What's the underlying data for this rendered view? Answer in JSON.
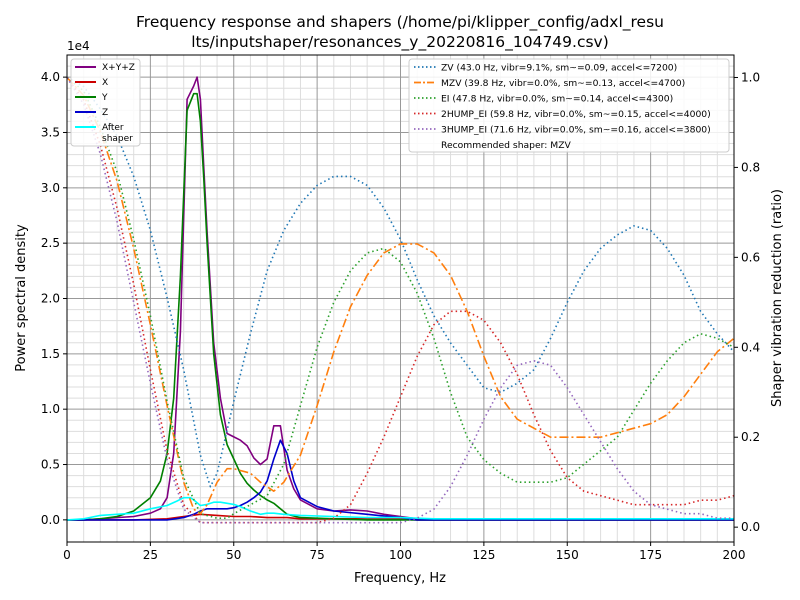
{
  "chart_data": {
    "type": "line",
    "title_lines": [
      "Frequency response and shapers (/home/pi/klipper_config/adxl_resu",
      "lts/inputshaper/resonances_y_20220816_104749.csv)"
    ],
    "xlabel": "Frequency, Hz",
    "ylabel": "Power spectral density",
    "y2label": "Shaper vibration reduction (ratio)",
    "y_multiplier_label": "1e4",
    "xlim": [
      0,
      200
    ],
    "ylim": [
      -0.2,
      4.2
    ],
    "y2lim": [
      -0.033,
      1.05
    ],
    "grid": true,
    "x_ticks": [
      0,
      25,
      50,
      75,
      100,
      125,
      150,
      175,
      200
    ],
    "x_tick_labels": [
      "0",
      "25",
      "50",
      "75",
      "100",
      "125",
      "150",
      "175",
      "200"
    ],
    "y_ticks": [
      0,
      0.5,
      1.0,
      1.5,
      2.0,
      2.5,
      3.0,
      3.5,
      4.0
    ],
    "y_tick_labels": [
      "0.0",
      "0.5",
      "1.0",
      "1.5",
      "2.0",
      "2.5",
      "3.0",
      "3.5",
      "4.0"
    ],
    "y2_ticks": [
      0,
      0.2,
      0.4,
      0.6,
      0.8,
      1.0
    ],
    "y2_tick_labels": [
      "0.0",
      "0.2",
      "0.4",
      "0.6",
      "0.8",
      "1.0"
    ],
    "legend_left": {
      "placement": "top-left",
      "entries": [
        {
          "label": "X+Y+Z",
          "color": "#800080"
        },
        {
          "label": "X",
          "color": "#cc0000"
        },
        {
          "label": "Y",
          "color": "#008000"
        },
        {
          "label": "Z",
          "color": "#0000cc"
        },
        {
          "label": "After\nshaper",
          "color": "#00ffff"
        }
      ]
    },
    "legend_right": {
      "placement": "top-right",
      "entries": [
        {
          "label": "ZV (43.0 Hz, vibr=9.1%, sm~=0.09, accel<=7200)",
          "color": "#1f77b4",
          "style": "dotted"
        },
        {
          "label": "MZV (39.8 Hz, vibr=0.0%, sm~=0.13, accel<=4700)",
          "color": "#ff7f0e",
          "style": "dashdot"
        },
        {
          "label": "EI (47.8 Hz, vibr=0.0%, sm~=0.14, accel<=4300)",
          "color": "#2ca02c",
          "style": "dotted"
        },
        {
          "label": "2HUMP_EI (59.8 Hz, vibr=0.0%, sm~=0.15, accel<=4000)",
          "color": "#d62728",
          "style": "dotted"
        },
        {
          "label": "3HUMP_EI (71.6 Hz, vibr=0.0%, sm~=0.16, accel<=3800)",
          "color": "#9467bd",
          "style": "dotted"
        },
        {
          "label": "Recommended shaper: MZV",
          "color": "",
          "style": "none"
        }
      ]
    },
    "series": [
      {
        "name": "X+Y+Z",
        "axis": "left",
        "color": "#800080",
        "width": 1.6,
        "x": [
          0,
          5,
          10,
          15,
          20,
          25,
          28,
          30,
          32,
          34,
          36,
          38,
          39,
          40,
          41,
          42,
          44,
          46,
          48,
          50,
          52,
          54,
          56,
          58,
          60,
          62,
          64,
          66,
          68,
          70,
          75,
          80,
          85,
          90,
          95,
          100,
          105,
          110,
          200
        ],
        "y": [
          0,
          0,
          0.01,
          0.02,
          0.03,
          0.06,
          0.1,
          0.2,
          0.6,
          1.7,
          3.8,
          3.92,
          4.0,
          3.8,
          3.2,
          2.6,
          1.6,
          1.1,
          0.78,
          0.75,
          0.72,
          0.67,
          0.56,
          0.5,
          0.55,
          0.85,
          0.85,
          0.45,
          0.28,
          0.18,
          0.1,
          0.08,
          0.09,
          0.08,
          0.05,
          0.03,
          0.01,
          0.01,
          0.01
        ]
      },
      {
        "name": "X",
        "axis": "left",
        "color": "#cc0000",
        "width": 1.6,
        "x": [
          0,
          10,
          20,
          30,
          35,
          40,
          45,
          50,
          55,
          60,
          62,
          64,
          66,
          70,
          80,
          90,
          100,
          105,
          200
        ],
        "y": [
          0,
          0,
          0,
          0.01,
          0.03,
          0.05,
          0.04,
          0.03,
          0.03,
          0.02,
          0.02,
          0.02,
          0.02,
          0.01,
          0.01,
          0.01,
          0.01,
          0,
          0
        ]
      },
      {
        "name": "Y",
        "axis": "left",
        "color": "#008000",
        "width": 1.6,
        "x": [
          0,
          5,
          10,
          15,
          20,
          25,
          28,
          30,
          32,
          34,
          36,
          38,
          39,
          40,
          41,
          42,
          44,
          46,
          48,
          50,
          52,
          54,
          56,
          58,
          60,
          62,
          64,
          66,
          70,
          80,
          90,
          100,
          200
        ],
        "y": [
          0,
          0,
          0.01,
          0.03,
          0.08,
          0.2,
          0.35,
          0.6,
          1.1,
          2.2,
          3.7,
          3.85,
          3.85,
          3.6,
          3.1,
          2.5,
          1.5,
          0.95,
          0.68,
          0.55,
          0.42,
          0.33,
          0.27,
          0.22,
          0.18,
          0.15,
          0.1,
          0.05,
          0.02,
          0.01,
          0,
          0,
          0
        ]
      },
      {
        "name": "Z",
        "axis": "left",
        "color": "#0000cc",
        "width": 1.6,
        "x": [
          0,
          5,
          10,
          20,
          30,
          35,
          38,
          40,
          42,
          44,
          46,
          48,
          50,
          52,
          54,
          56,
          58,
          60,
          62,
          64,
          66,
          68,
          70,
          75,
          80,
          90,
          100,
          105,
          200
        ],
        "y": [
          0,
          0,
          0,
          0,
          0,
          0.02,
          0.05,
          0.08,
          0.1,
          0.1,
          0.1,
          0.1,
          0.11,
          0.13,
          0.16,
          0.2,
          0.25,
          0.35,
          0.55,
          0.72,
          0.6,
          0.35,
          0.2,
          0.12,
          0.08,
          0.05,
          0.02,
          0,
          0
        ]
      },
      {
        "name": "After shaper",
        "axis": "left",
        "color": "#00ffff",
        "width": 1.6,
        "x": [
          0,
          5,
          10,
          15,
          20,
          25,
          30,
          33,
          35,
          37,
          38,
          40,
          42,
          44,
          46,
          48,
          50,
          52,
          55,
          58,
          60,
          62,
          65,
          70,
          80,
          90,
          100,
          110,
          200
        ],
        "y": [
          0,
          0.01,
          0.04,
          0.05,
          0.06,
          0.1,
          0.13,
          0.17,
          0.2,
          0.2,
          0.18,
          0.13,
          0.14,
          0.16,
          0.16,
          0.15,
          0.14,
          0.12,
          0.08,
          0.05,
          0.06,
          0.06,
          0.05,
          0.04,
          0.03,
          0.02,
          0.02,
          0.01,
          0.01
        ]
      },
      {
        "name": "ZV (43.0 Hz, vibr=9.1%, sm~=0.09, accel<=7200)",
        "axis": "right",
        "color": "#1f77b4",
        "width": 1.6,
        "dash": "1.5,3",
        "x": [
          0,
          5,
          10,
          15,
          20,
          25,
          30,
          35,
          40,
          43,
          45,
          50,
          55,
          60,
          65,
          70,
          75,
          80,
          85,
          90,
          95,
          100,
          105,
          110,
          115,
          120,
          125,
          130,
          135,
          140,
          145,
          150,
          155,
          160,
          165,
          170,
          175,
          180,
          185,
          190,
          195,
          200
        ],
        "y": [
          1.0,
          0.98,
          0.93,
          0.87,
          0.78,
          0.66,
          0.51,
          0.35,
          0.16,
          0.09,
          0.12,
          0.28,
          0.43,
          0.57,
          0.66,
          0.72,
          0.76,
          0.78,
          0.78,
          0.76,
          0.71,
          0.64,
          0.55,
          0.47,
          0.41,
          0.36,
          0.31,
          0.3,
          0.32,
          0.35,
          0.42,
          0.5,
          0.57,
          0.62,
          0.65,
          0.67,
          0.66,
          0.62,
          0.56,
          0.48,
          0.43,
          0.39
        ]
      },
      {
        "name": "MZV (39.8 Hz, vibr=0.0%, sm~=0.13, accel<=4700)",
        "axis": "right",
        "color": "#ff7f0e",
        "width": 1.6,
        "dash": "9,3,2,3",
        "x": [
          0,
          5,
          10,
          15,
          20,
          25,
          30,
          35,
          38,
          40,
          42,
          45,
          48,
          50,
          55,
          58,
          60,
          62,
          65,
          70,
          75,
          80,
          85,
          90,
          95,
          100,
          105,
          110,
          115,
          120,
          125,
          130,
          135,
          140,
          145,
          150,
          155,
          160,
          165,
          170,
          175,
          180,
          185,
          190,
          195,
          200
        ],
        "y": [
          1.0,
          0.96,
          0.88,
          0.77,
          0.62,
          0.45,
          0.27,
          0.1,
          0.04,
          0.03,
          0.05,
          0.1,
          0.13,
          0.13,
          0.12,
          0.1,
          0.09,
          0.08,
          0.1,
          0.16,
          0.27,
          0.39,
          0.49,
          0.56,
          0.61,
          0.63,
          0.63,
          0.61,
          0.56,
          0.48,
          0.38,
          0.29,
          0.24,
          0.22,
          0.2,
          0.2,
          0.2,
          0.2,
          0.21,
          0.22,
          0.23,
          0.25,
          0.29,
          0.34,
          0.39,
          0.42
        ]
      },
      {
        "name": "EI (47.8 Hz, vibr=0.0%, sm~=0.14, accel<=4300)",
        "axis": "right",
        "color": "#2ca02c",
        "width": 1.6,
        "dash": "1.5,3",
        "x": [
          0,
          5,
          10,
          15,
          20,
          25,
          30,
          35,
          40,
          45,
          48,
          50,
          55,
          60,
          65,
          70,
          75,
          80,
          85,
          90,
          95,
          100,
          105,
          110,
          115,
          120,
          125,
          130,
          135,
          140,
          145,
          150,
          155,
          160,
          165,
          170,
          175,
          180,
          185,
          190,
          195,
          200
        ],
        "y": [
          1.0,
          0.97,
          0.89,
          0.79,
          0.64,
          0.47,
          0.28,
          0.11,
          0.03,
          0.02,
          0.02,
          0.03,
          0.05,
          0.07,
          0.14,
          0.27,
          0.4,
          0.5,
          0.57,
          0.61,
          0.62,
          0.59,
          0.52,
          0.42,
          0.3,
          0.2,
          0.15,
          0.12,
          0.1,
          0.1,
          0.1,
          0.11,
          0.14,
          0.17,
          0.2,
          0.26,
          0.32,
          0.37,
          0.41,
          0.43,
          0.42,
          0.4
        ]
      },
      {
        "name": "2HUMP_EI (59.8 Hz, vibr=0.0%, sm~=0.15, accel<=4000)",
        "axis": "right",
        "color": "#d62728",
        "width": 1.6,
        "dash": "1.5,3",
        "x": [
          0,
          5,
          10,
          15,
          20,
          25,
          30,
          35,
          40,
          45,
          50,
          55,
          60,
          65,
          70,
          75,
          80,
          85,
          90,
          95,
          100,
          105,
          110,
          115,
          120,
          125,
          130,
          135,
          140,
          145,
          150,
          155,
          160,
          165,
          170,
          175,
          180,
          185,
          190,
          195,
          200
        ],
        "y": [
          1.0,
          0.95,
          0.85,
          0.71,
          0.54,
          0.35,
          0.17,
          0.05,
          0.01,
          0.01,
          0.01,
          0.01,
          0.01,
          0.01,
          0.01,
          0.01,
          0.02,
          0.05,
          0.12,
          0.2,
          0.29,
          0.38,
          0.45,
          0.48,
          0.48,
          0.46,
          0.41,
          0.34,
          0.25,
          0.17,
          0.11,
          0.08,
          0.07,
          0.06,
          0.05,
          0.05,
          0.05,
          0.05,
          0.06,
          0.06,
          0.07
        ]
      },
      {
        "name": "3HUMP_EI (71.6 Hz, vibr=0.0%, sm~=0.16, accel<=3800)",
        "axis": "right",
        "color": "#9467bd",
        "width": 1.6,
        "dash": "1.5,3",
        "x": [
          0,
          5,
          10,
          15,
          20,
          25,
          30,
          35,
          40,
          50,
          60,
          70,
          80,
          90,
          100,
          105,
          110,
          115,
          120,
          125,
          130,
          135,
          140,
          145,
          150,
          155,
          160,
          165,
          170,
          175,
          180,
          185,
          190,
          195,
          200
        ],
        "y": [
          1.0,
          0.94,
          0.83,
          0.68,
          0.5,
          0.32,
          0.15,
          0.04,
          0.01,
          0.01,
          0.01,
          0.01,
          0.01,
          0.01,
          0.01,
          0.02,
          0.04,
          0.09,
          0.16,
          0.24,
          0.31,
          0.36,
          0.37,
          0.36,
          0.31,
          0.25,
          0.19,
          0.13,
          0.08,
          0.05,
          0.04,
          0.03,
          0.03,
          0.02,
          0.02
        ]
      }
    ]
  }
}
